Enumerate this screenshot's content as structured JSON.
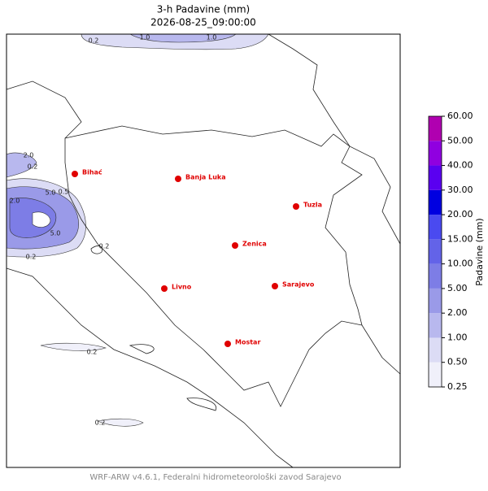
{
  "title": [
    "3-h Padavine (mm)",
    "2026-08-25_09:00:00"
  ],
  "cities": [
    {
      "name": "Bihać"
    },
    {
      "name": "Banja Luka"
    },
    {
      "name": "Tuzla"
    },
    {
      "name": "Zenica"
    },
    {
      "name": "Livno"
    },
    {
      "name": "Sarajevo"
    },
    {
      "name": "Mostar"
    }
  ],
  "contour_labels": [
    "1.0",
    "0.2",
    "1.0",
    "2.0",
    "0.2",
    "5.0",
    "0.5",
    "2.0",
    "5.0",
    "0.2",
    "0.2",
    "0.2",
    "0.2"
  ],
  "colorbar": {
    "label": "Padavine (mm)",
    "ticks": [
      0.25,
      {
        "value": 0.5,
        "label": "0.50"
      },
      {
        "value": 1,
        "label": "1.00"
      },
      {
        "value": 2,
        "label": "2.00"
      },
      {
        "value": 5,
        "label": "5.00"
      },
      {
        "value": 10,
        "label": "10.00"
      },
      {
        "value": 15,
        "label": "15.00"
      },
      {
        "value": 20,
        "label": "20.00"
      },
      {
        "value": 30,
        "label": "30.00"
      },
      {
        "value": 40,
        "label": "40.00"
      },
      {
        "value": 50,
        "label": "50.00"
      },
      {
        "value": 60,
        "label": "60.00"
      }
    ],
    "colors": [
      "#f0f0fa",
      "#dcdcf5",
      "#b8b8ee",
      "#9a9ae8",
      "#7d7de6",
      "#6363e8",
      "#4a4af0",
      "#0000e0",
      "#5a00f0",
      "#9000e0",
      "#b000b0"
    ]
  },
  "footer": "WRF-ARW v4.6.1, Federalni hidrometeorološki zavod Sarajevo"
}
